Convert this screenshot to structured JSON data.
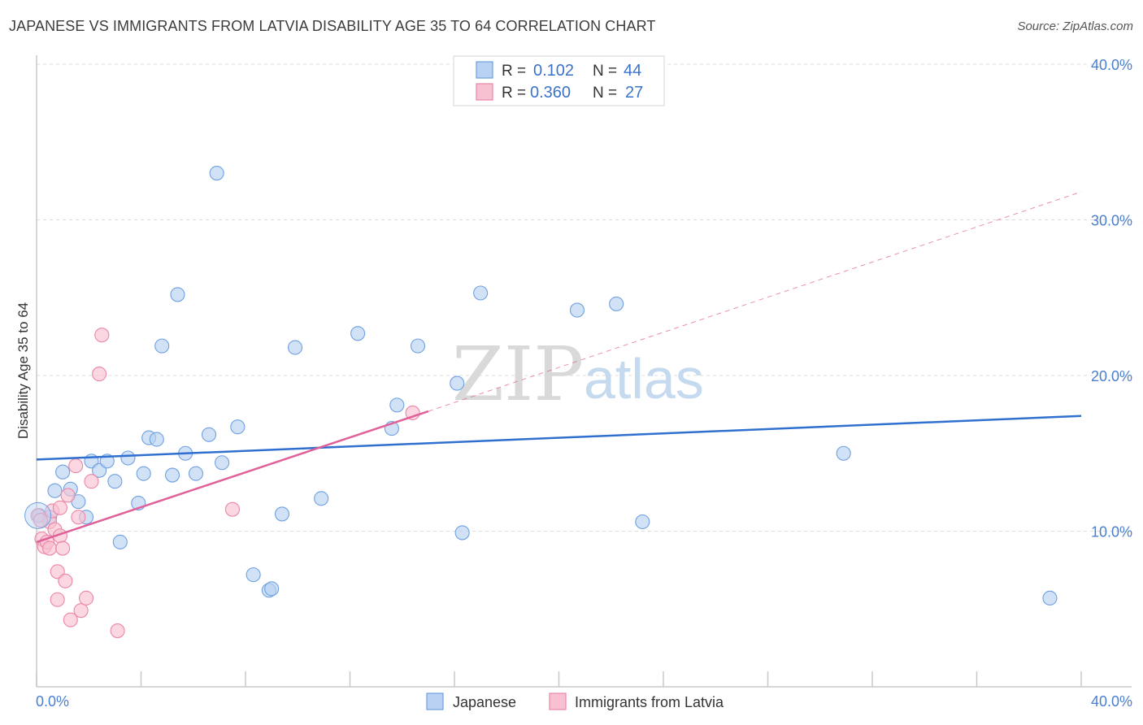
{
  "header": {
    "title": "JAPANESE VS IMMIGRANTS FROM LATVIA DISABILITY AGE 35 TO 64 CORRELATION CHART",
    "source": "Source: ZipAtlas.com"
  },
  "watermark": {
    "zip": "ZIP",
    "atlas": "atlas"
  },
  "legend": {
    "r_label": "R =",
    "n_label": "N =",
    "series": [
      {
        "name": "Japanese",
        "r": "0.102",
        "n": "44"
      },
      {
        "name": "Immigrants from Latvia",
        "r": "0.360",
        "n": "27"
      }
    ]
  },
  "chart_data": {
    "type": "scatter",
    "title": "JAPANESE VS IMMIGRANTS FROM LATVIA DISABILITY AGE 35 TO 64 CORRELATION CHART",
    "xlabel": "",
    "ylabel": "Disability Age 35 to 64",
    "xlim": [
      0,
      40
    ],
    "ylim": [
      0,
      40
    ],
    "x_tick_labels": [
      "0.0%",
      "40.0%"
    ],
    "y_ticks": [
      10,
      20,
      30,
      40
    ],
    "y_tick_labels": [
      "10.0%",
      "20.0%",
      "30.0%",
      "40.0%"
    ],
    "grid": true,
    "series": [
      {
        "name": "Japanese",
        "color": "#6fa0e0",
        "fill": "#b9d2f3",
        "points": [
          [
            0.1,
            11.0
          ],
          [
            0.5,
            10.9
          ],
          [
            0.7,
            12.6
          ],
          [
            1.0,
            13.8
          ],
          [
            1.3,
            12.7
          ],
          [
            1.6,
            11.9
          ],
          [
            1.9,
            10.9
          ],
          [
            2.1,
            14.5
          ],
          [
            2.4,
            13.9
          ],
          [
            2.7,
            14.5
          ],
          [
            3.0,
            13.2
          ],
          [
            3.2,
            9.3
          ],
          [
            3.5,
            14.7
          ],
          [
            3.9,
            11.8
          ],
          [
            4.1,
            13.7
          ],
          [
            4.3,
            16.0
          ],
          [
            4.6,
            15.9
          ],
          [
            4.8,
            21.9
          ],
          [
            5.2,
            13.6
          ],
          [
            5.4,
            25.2
          ],
          [
            5.7,
            15.0
          ],
          [
            6.1,
            13.7
          ],
          [
            6.6,
            16.2
          ],
          [
            6.9,
            33.0
          ],
          [
            7.1,
            14.4
          ],
          [
            7.7,
            16.7
          ],
          [
            8.3,
            7.2
          ],
          [
            8.9,
            6.2
          ],
          [
            9.0,
            6.3
          ],
          [
            9.4,
            11.1
          ],
          [
            9.9,
            21.8
          ],
          [
            10.9,
            12.1
          ],
          [
            12.3,
            22.7
          ],
          [
            13.6,
            16.6
          ],
          [
            13.8,
            18.1
          ],
          [
            14.6,
            21.9
          ],
          [
            16.1,
            19.5
          ],
          [
            16.3,
            9.9
          ],
          [
            17.0,
            25.3
          ],
          [
            20.7,
            24.2
          ],
          [
            22.2,
            24.6
          ],
          [
            23.2,
            10.6
          ],
          [
            30.9,
            15.0
          ],
          [
            38.8,
            5.7
          ]
        ]
      },
      {
        "name": "Immigrants from Latvia",
        "color": "#ec86a6",
        "fill": "#f7c1d1",
        "points": [
          [
            0.2,
            9.5
          ],
          [
            0.3,
            9.0
          ],
          [
            0.4,
            9.3
          ],
          [
            0.5,
            8.9
          ],
          [
            0.5,
            10.6
          ],
          [
            0.6,
            11.3
          ],
          [
            0.7,
            10.1
          ],
          [
            0.8,
            7.4
          ],
          [
            0.8,
            5.6
          ],
          [
            0.9,
            11.5
          ],
          [
            0.9,
            9.7
          ],
          [
            1.0,
            8.9
          ],
          [
            1.1,
            6.8
          ],
          [
            1.2,
            12.3
          ],
          [
            1.3,
            4.3
          ],
          [
            1.5,
            14.2
          ],
          [
            1.6,
            10.9
          ],
          [
            1.7,
            4.9
          ],
          [
            1.9,
            5.7
          ],
          [
            2.1,
            13.2
          ],
          [
            2.4,
            20.1
          ],
          [
            2.5,
            22.6
          ],
          [
            3.1,
            3.6
          ],
          [
            7.5,
            11.4
          ],
          [
            14.4,
            17.6
          ],
          [
            0.05,
            11.0
          ],
          [
            0.15,
            10.7
          ]
        ]
      }
    ],
    "trendlines": [
      {
        "series": "Japanese",
        "x0": 0,
        "y0": 14.6,
        "x1": 40,
        "y1": 17.4,
        "dashed_to": null
      },
      {
        "series": "Immigrants from Latvia",
        "x0": 0,
        "y0": 9.3,
        "x1": 15,
        "y1": 17.7,
        "dashed_to": [
          40,
          31.8
        ]
      }
    ]
  }
}
